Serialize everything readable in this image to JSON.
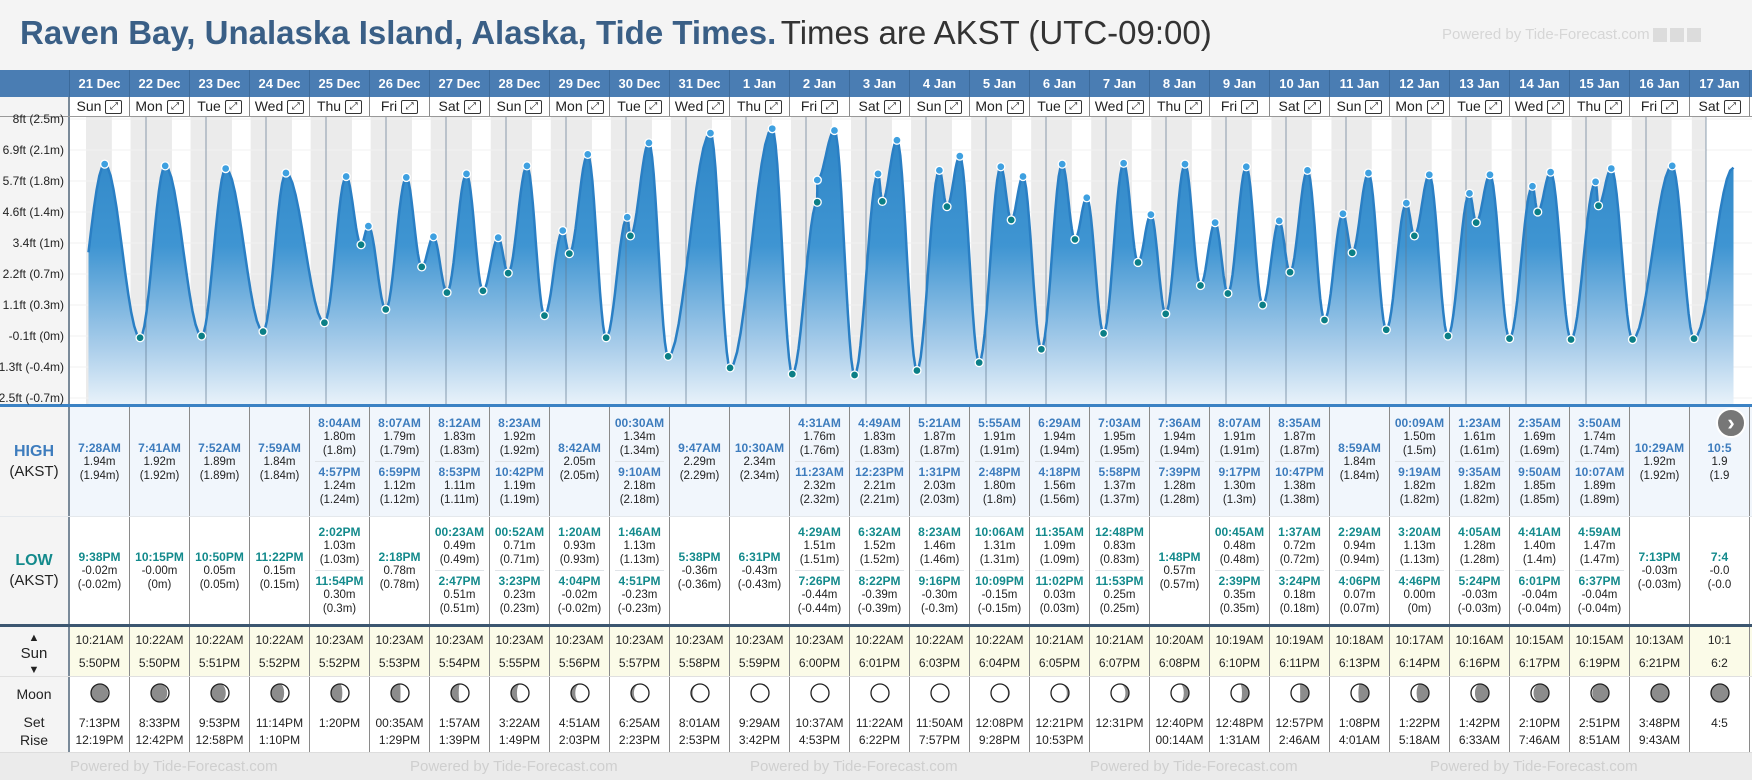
{
  "title": {
    "main": "Raven Bay, Unalaska Island, Alaska, Tide Times.",
    "timezone": "Times are AKST (UTC-09:00)"
  },
  "powered": "Powered by Tide-Forecast.com",
  "labels": {
    "high": "HIGH",
    "high_tz": "(AKST)",
    "low": "LOW",
    "low_tz": "(AKST)",
    "sun": "Sun",
    "sun_up": "▲",
    "sun_down": "▼",
    "moon": "Moon",
    "set": "Set",
    "rise": "Rise",
    "next": "›"
  },
  "colors": {
    "header": "#4a7db3",
    "high": "#3d7cbd",
    "low": "#138a8c",
    "curve": "#2a7fc4"
  },
  "y_axis": [
    "8ft (2.5m)",
    "6.9ft (2.1m)",
    "5.7ft (1.8m)",
    "4.6ft (1.4m)",
    "3.4ft (1m)",
    "2.2ft (0.7m)",
    "1.1ft (0.3m)",
    "-0.1ft (0m)",
    "-1.3ft (-0.4m)",
    "-2.5ft (-0.7m)"
  ],
  "days": [
    {
      "date": "21 Dec",
      "dow": "Sun",
      "high": [
        {
          "t": "7:28AM",
          "h": "1.94m",
          "p": "(1.94m)"
        }
      ],
      "low": [
        {
          "t": "9:38PM",
          "h": "-0.02m",
          "p": "(-0.02m)"
        }
      ],
      "sun": {
        "rise": "10:21AM",
        "set": "5:50PM"
      },
      "moon": {
        "set": "7:13PM",
        "rise": "12:19PM",
        "illum": 0.05,
        "waxing": true
      }
    },
    {
      "date": "22 Dec",
      "dow": "Mon",
      "high": [
        {
          "t": "7:41AM",
          "h": "1.92m",
          "p": "(1.92m)"
        }
      ],
      "low": [
        {
          "t": "10:15PM",
          "h": "-0.00m",
          "p": "(0m)"
        }
      ],
      "sun": {
        "rise": "10:22AM",
        "set": "5:50PM"
      },
      "moon": {
        "set": "8:33PM",
        "rise": "12:42PM",
        "illum": 0.1,
        "waxing": true
      }
    },
    {
      "date": "23 Dec",
      "dow": "Tue",
      "high": [
        {
          "t": "7:52AM",
          "h": "1.89m",
          "p": "(1.89m)"
        }
      ],
      "low": [
        {
          "t": "10:50PM",
          "h": "0.05m",
          "p": "(0.05m)"
        }
      ],
      "sun": {
        "rise": "10:22AM",
        "set": "5:51PM"
      },
      "moon": {
        "set": "9:53PM",
        "rise": "12:58PM",
        "illum": 0.18,
        "waxing": true
      }
    },
    {
      "date": "24 Dec",
      "dow": "Wed",
      "high": [
        {
          "t": "7:59AM",
          "h": "1.84m",
          "p": "(1.84m)"
        }
      ],
      "low": [
        {
          "t": "11:22PM",
          "h": "0.15m",
          "p": "(0.15m)"
        }
      ],
      "sun": {
        "rise": "10:22AM",
        "set": "5:52PM"
      },
      "moon": {
        "set": "11:14PM",
        "rise": "1:10PM",
        "illum": 0.27,
        "waxing": true
      }
    },
    {
      "date": "25 Dec",
      "dow": "Thu",
      "high": [
        {
          "t": "8:04AM",
          "h": "1.80m",
          "p": "(1.8m)"
        },
        {
          "t": "4:57PM",
          "h": "1.24m",
          "p": "(1.24m)"
        }
      ],
      "low": [
        {
          "t": "2:02PM",
          "h": "1.03m",
          "p": "(1.03m)"
        },
        {
          "t": "11:54PM",
          "h": "0.30m",
          "p": "(0.3m)"
        }
      ],
      "sun": {
        "rise": "10:23AM",
        "set": "5:52PM"
      },
      "moon": {
        "set": "",
        "rise": "1:20PM",
        "illum": 0.37,
        "waxing": true
      }
    },
    {
      "date": "26 Dec",
      "dow": "Fri",
      "high": [
        {
          "t": "8:07AM",
          "h": "1.79m",
          "p": "(1.79m)"
        },
        {
          "t": "6:59PM",
          "h": "1.12m",
          "p": "(1.12m)"
        }
      ],
      "low": [
        {
          "t": "2:18PM",
          "h": "0.78m",
          "p": "(0.78m)"
        }
      ],
      "sun": {
        "rise": "10:23AM",
        "set": "5:53PM"
      },
      "moon": {
        "set": "00:35AM",
        "rise": "1:29PM",
        "illum": 0.47,
        "waxing": true
      }
    },
    {
      "date": "27 Dec",
      "dow": "Sat",
      "high": [
        {
          "t": "8:12AM",
          "h": "1.83m",
          "p": "(1.83m)"
        },
        {
          "t": "8:53PM",
          "h": "1.11m",
          "p": "(1.11m)"
        }
      ],
      "low": [
        {
          "t": "00:23AM",
          "h": "0.49m",
          "p": "(0.49m)"
        },
        {
          "t": "2:47PM",
          "h": "0.51m",
          "p": "(0.51m)"
        }
      ],
      "sun": {
        "rise": "10:23AM",
        "set": "5:54PM"
      },
      "moon": {
        "set": "1:57AM",
        "rise": "1:39PM",
        "illum": 0.57,
        "waxing": true
      }
    },
    {
      "date": "28 Dec",
      "dow": "Sun",
      "high": [
        {
          "t": "8:23AM",
          "h": "1.92m",
          "p": "(1.92m)"
        },
        {
          "t": "10:42PM",
          "h": "1.19m",
          "p": "(1.19m)"
        }
      ],
      "low": [
        {
          "t": "00:52AM",
          "h": "0.71m",
          "p": "(0.71m)"
        },
        {
          "t": "3:23PM",
          "h": "0.23m",
          "p": "(0.23m)"
        }
      ],
      "sun": {
        "rise": "10:23AM",
        "set": "5:55PM"
      },
      "moon": {
        "set": "3:22AM",
        "rise": "1:49PM",
        "illum": 0.67,
        "waxing": true
      }
    },
    {
      "date": "29 Dec",
      "dow": "Mon",
      "high": [
        {
          "t": "8:42AM",
          "h": "2.05m",
          "p": "(2.05m)"
        }
      ],
      "low": [
        {
          "t": "1:20AM",
          "h": "0.93m",
          "p": "(0.93m)"
        },
        {
          "t": "4:04PM",
          "h": "-0.02m",
          "p": "(-0.02m)"
        }
      ],
      "sun": {
        "rise": "10:23AM",
        "set": "5:56PM"
      },
      "moon": {
        "set": "4:51AM",
        "rise": "2:03PM",
        "illum": 0.76,
        "waxing": true
      }
    },
    {
      "date": "30 Dec",
      "dow": "Tue",
      "high": [
        {
          "t": "00:30AM",
          "h": "1.34m",
          "p": "(1.34m)"
        },
        {
          "t": "9:10AM",
          "h": "2.18m",
          "p": "(2.18m)"
        }
      ],
      "low": [
        {
          "t": "1:46AM",
          "h": "1.13m",
          "p": "(1.13m)"
        },
        {
          "t": "4:51PM",
          "h": "-0.23m",
          "p": "(-0.23m)"
        }
      ],
      "sun": {
        "rise": "10:23AM",
        "set": "5:57PM"
      },
      "moon": {
        "set": "6:25AM",
        "rise": "2:23PM",
        "illum": 0.84,
        "waxing": true
      }
    },
    {
      "date": "31 Dec",
      "dow": "Wed",
      "high": [
        {
          "t": "9:47AM",
          "h": "2.29m",
          "p": "(2.29m)"
        }
      ],
      "low": [
        {
          "t": "5:38PM",
          "h": "-0.36m",
          "p": "(-0.36m)"
        }
      ],
      "sun": {
        "rise": "10:23AM",
        "set": "5:58PM"
      },
      "moon": {
        "set": "8:01AM",
        "rise": "2:53PM",
        "illum": 0.91,
        "waxing": true
      }
    },
    {
      "date": "1 Jan",
      "dow": "Thu",
      "high": [
        {
          "t": "10:30AM",
          "h": "2.34m",
          "p": "(2.34m)"
        }
      ],
      "low": [
        {
          "t": "6:31PM",
          "h": "-0.43m",
          "p": "(-0.43m)"
        }
      ],
      "sun": {
        "rise": "10:23AM",
        "set": "5:59PM"
      },
      "moon": {
        "set": "9:29AM",
        "rise": "3:42PM",
        "illum": 0.96,
        "waxing": true
      }
    },
    {
      "date": "2 Jan",
      "dow": "Fri",
      "high": [
        {
          "t": "4:31AM",
          "h": "1.76m",
          "p": "(1.76m)"
        },
        {
          "t": "11:23AM",
          "h": "2.32m",
          "p": "(2.32m)"
        }
      ],
      "low": [
        {
          "t": "4:29AM",
          "h": "1.51m",
          "p": "(1.51m)"
        },
        {
          "t": "7:26PM",
          "h": "-0.44m",
          "p": "(-0.44m)"
        }
      ],
      "sun": {
        "rise": "10:23AM",
        "set": "6:00PM"
      },
      "moon": {
        "set": "10:37AM",
        "rise": "4:53PM",
        "illum": 0.99,
        "waxing": true
      }
    },
    {
      "date": "3 Jan",
      "dow": "Sat",
      "high": [
        {
          "t": "4:49AM",
          "h": "1.83m",
          "p": "(1.83m)"
        },
        {
          "t": "12:23PM",
          "h": "2.21m",
          "p": "(2.21m)"
        }
      ],
      "low": [
        {
          "t": "6:32AM",
          "h": "1.52m",
          "p": "(1.52m)"
        },
        {
          "t": "8:22PM",
          "h": "-0.39m",
          "p": "(-0.39m)"
        }
      ],
      "sun": {
        "rise": "10:22AM",
        "set": "6:01PM"
      },
      "moon": {
        "set": "11:22AM",
        "rise": "6:22PM",
        "illum": 1.0,
        "waxing": false
      }
    },
    {
      "date": "4 Jan",
      "dow": "Sun",
      "high": [
        {
          "t": "5:21AM",
          "h": "1.87m",
          "p": "(1.87m)"
        },
        {
          "t": "1:31PM",
          "h": "2.03m",
          "p": "(2.03m)"
        }
      ],
      "low": [
        {
          "t": "8:23AM",
          "h": "1.46m",
          "p": "(1.46m)"
        },
        {
          "t": "9:16PM",
          "h": "-0.30m",
          "p": "(-0.3m)"
        }
      ],
      "sun": {
        "rise": "10:22AM",
        "set": "6:03PM"
      },
      "moon": {
        "set": "11:50AM",
        "rise": "7:57PM",
        "illum": 0.98,
        "waxing": false
      }
    },
    {
      "date": "5 Jan",
      "dow": "Mon",
      "high": [
        {
          "t": "5:55AM",
          "h": "1.91m",
          "p": "(1.91m)"
        },
        {
          "t": "2:48PM",
          "h": "1.80m",
          "p": "(1.8m)"
        }
      ],
      "low": [
        {
          "t": "10:06AM",
          "h": "1.31m",
          "p": "(1.31m)"
        },
        {
          "t": "10:09PM",
          "h": "-0.15m",
          "p": "(-0.15m)"
        }
      ],
      "sun": {
        "rise": "10:22AM",
        "set": "6:04PM"
      },
      "moon": {
        "set": "12:08PM",
        "rise": "9:28PM",
        "illum": 0.94,
        "waxing": false
      }
    },
    {
      "date": "6 Jan",
      "dow": "Tue",
      "high": [
        {
          "t": "6:29AM",
          "h": "1.94m",
          "p": "(1.94m)"
        },
        {
          "t": "4:18PM",
          "h": "1.56m",
          "p": "(1.56m)"
        }
      ],
      "low": [
        {
          "t": "11:35AM",
          "h": "1.09m",
          "p": "(1.09m)"
        },
        {
          "t": "11:02PM",
          "h": "0.03m",
          "p": "(0.03m)"
        }
      ],
      "sun": {
        "rise": "10:21AM",
        "set": "6:05PM"
      },
      "moon": {
        "set": "12:21PM",
        "rise": "10:53PM",
        "illum": 0.88,
        "waxing": false
      }
    },
    {
      "date": "7 Jan",
      "dow": "Wed",
      "high": [
        {
          "t": "7:03AM",
          "h": "1.95m",
          "p": "(1.95m)"
        },
        {
          "t": "5:58PM",
          "h": "1.37m",
          "p": "(1.37m)"
        }
      ],
      "low": [
        {
          "t": "12:48PM",
          "h": "0.83m",
          "p": "(0.83m)"
        },
        {
          "t": "11:53PM",
          "h": "0.25m",
          "p": "(0.25m)"
        }
      ],
      "sun": {
        "rise": "10:21AM",
        "set": "6:07PM"
      },
      "moon": {
        "set": "12:31PM",
        "rise": "",
        "illum": 0.8,
        "waxing": false
      }
    },
    {
      "date": "8 Jan",
      "dow": "Thu",
      "high": [
        {
          "t": "7:36AM",
          "h": "1.94m",
          "p": "(1.94m)"
        },
        {
          "t": "7:39PM",
          "h": "1.28m",
          "p": "(1.28m)"
        }
      ],
      "low": [
        {
          "t": "1:48PM",
          "h": "0.57m",
          "p": "(0.57m)"
        }
      ],
      "sun": {
        "rise": "10:20AM",
        "set": "6:08PM"
      },
      "moon": {
        "set": "12:40PM",
        "rise": "00:14AM",
        "illum": 0.71,
        "waxing": false
      }
    },
    {
      "date": "9 Jan",
      "dow": "Fri",
      "high": [
        {
          "t": "8:07AM",
          "h": "1.91m",
          "p": "(1.91m)"
        },
        {
          "t": "9:17PM",
          "h": "1.30m",
          "p": "(1.3m)"
        }
      ],
      "low": [
        {
          "t": "00:45AM",
          "h": "0.48m",
          "p": "(0.48m)"
        },
        {
          "t": "2:39PM",
          "h": "0.35m",
          "p": "(0.35m)"
        }
      ],
      "sun": {
        "rise": "10:19AM",
        "set": "6:10PM"
      },
      "moon": {
        "set": "12:48PM",
        "rise": "1:31AM",
        "illum": 0.61,
        "waxing": false
      }
    },
    {
      "date": "10 Jan",
      "dow": "Sat",
      "high": [
        {
          "t": "8:35AM",
          "h": "1.87m",
          "p": "(1.87m)"
        },
        {
          "t": "10:47PM",
          "h": "1.38m",
          "p": "(1.38m)"
        }
      ],
      "low": [
        {
          "t": "1:37AM",
          "h": "0.72m",
          "p": "(0.72m)"
        },
        {
          "t": "3:24PM",
          "h": "0.18m",
          "p": "(0.18m)"
        }
      ],
      "sun": {
        "rise": "10:19AM",
        "set": "6:11PM"
      },
      "moon": {
        "set": "12:57PM",
        "rise": "2:46AM",
        "illum": 0.51,
        "waxing": false
      }
    },
    {
      "date": "11 Jan",
      "dow": "Sun",
      "high": [
        {
          "t": "8:59AM",
          "h": "1.84m",
          "p": "(1.84m)"
        }
      ],
      "low": [
        {
          "t": "2:29AM",
          "h": "0.94m",
          "p": "(0.94m)"
        },
        {
          "t": "4:06PM",
          "h": "0.07m",
          "p": "(0.07m)"
        }
      ],
      "sun": {
        "rise": "10:18AM",
        "set": "6:13PM"
      },
      "moon": {
        "set": "1:08PM",
        "rise": "4:01AM",
        "illum": 0.41,
        "waxing": false
      }
    },
    {
      "date": "12 Jan",
      "dow": "Mon",
      "high": [
        {
          "t": "00:09AM",
          "h": "1.50m",
          "p": "(1.5m)"
        },
        {
          "t": "9:19AM",
          "h": "1.82m",
          "p": "(1.82m)"
        }
      ],
      "low": [
        {
          "t": "3:20AM",
          "h": "1.13m",
          "p": "(1.13m)"
        },
        {
          "t": "4:46PM",
          "h": "0.00m",
          "p": "(0m)"
        }
      ],
      "sun": {
        "rise": "10:17AM",
        "set": "6:14PM"
      },
      "moon": {
        "set": "1:22PM",
        "rise": "5:18AM",
        "illum": 0.31,
        "waxing": false
      }
    },
    {
      "date": "13 Jan",
      "dow": "Tue",
      "high": [
        {
          "t": "1:23AM",
          "h": "1.61m",
          "p": "(1.61m)"
        },
        {
          "t": "9:35AM",
          "h": "1.82m",
          "p": "(1.82m)"
        }
      ],
      "low": [
        {
          "t": "4:05AM",
          "h": "1.28m",
          "p": "(1.28m)"
        },
        {
          "t": "5:24PM",
          "h": "-0.03m",
          "p": "(-0.03m)"
        }
      ],
      "sun": {
        "rise": "10:16AM",
        "set": "6:16PM"
      },
      "moon": {
        "set": "1:42PM",
        "rise": "6:33AM",
        "illum": 0.22,
        "waxing": false
      }
    },
    {
      "date": "14 Jan",
      "dow": "Wed",
      "high": [
        {
          "t": "2:35AM",
          "h": "1.69m",
          "p": "(1.69m)"
        },
        {
          "t": "9:50AM",
          "h": "1.85m",
          "p": "(1.85m)"
        }
      ],
      "low": [
        {
          "t": "4:41AM",
          "h": "1.40m",
          "p": "(1.4m)"
        },
        {
          "t": "6:01PM",
          "h": "-0.04m",
          "p": "(-0.04m)"
        }
      ],
      "sun": {
        "rise": "10:15AM",
        "set": "6:17PM"
      },
      "moon": {
        "set": "2:10PM",
        "rise": "7:46AM",
        "illum": 0.14,
        "waxing": false
      }
    },
    {
      "date": "15 Jan",
      "dow": "Thu",
      "high": [
        {
          "t": "3:50AM",
          "h": "1.74m",
          "p": "(1.74m)"
        },
        {
          "t": "10:07AM",
          "h": "1.89m",
          "p": "(1.89m)"
        }
      ],
      "low": [
        {
          "t": "4:59AM",
          "h": "1.47m",
          "p": "(1.47m)"
        },
        {
          "t": "6:37PM",
          "h": "-0.04m",
          "p": "(-0.04m)"
        }
      ],
      "sun": {
        "rise": "10:15AM",
        "set": "6:19PM"
      },
      "moon": {
        "set": "2:51PM",
        "rise": "8:51AM",
        "illum": 0.07,
        "waxing": false
      }
    },
    {
      "date": "16 Jan",
      "dow": "Fri",
      "high": [
        {
          "t": "10:29AM",
          "h": "1.92m",
          "p": "(1.92m)"
        }
      ],
      "low": [
        {
          "t": "7:13PM",
          "h": "-0.03m",
          "p": "(-0.03m)"
        }
      ],
      "sun": {
        "rise": "10:13AM",
        "set": "6:21PM"
      },
      "moon": {
        "set": "3:48PM",
        "rise": "9:43AM",
        "illum": 0.02,
        "waxing": false
      }
    },
    {
      "date": "17 Jan",
      "dow": "Sat",
      "high": [
        {
          "t": "10:5",
          "h": "1.9",
          "p": "(1.9"
        }
      ],
      "low": [
        {
          "t": "7:4",
          "h": "-0.0",
          "p": "(-0.0"
        }
      ],
      "sun": {
        "rise": "10:1",
        "set": "6:2"
      },
      "moon": {
        "set": "4:5",
        "rise": "",
        "illum": 0.0,
        "waxing": true
      }
    }
  ]
}
